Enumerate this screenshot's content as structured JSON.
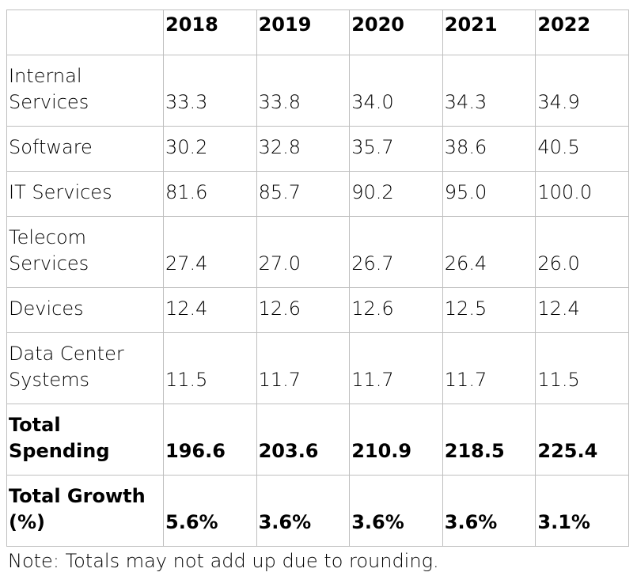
{
  "chart_data": {
    "type": "table",
    "columns": [
      "",
      "2018",
      "2019",
      "2020",
      "2021",
      "2022"
    ],
    "rows": [
      {
        "label": "Internal Services",
        "values": [
          "33.3",
          "33.8",
          "34.0",
          "34.3",
          "34.9"
        ]
      },
      {
        "label": "Software",
        "values": [
          "30.2",
          "32.8",
          "35.7",
          "38.6",
          "40.5"
        ]
      },
      {
        "label": "IT Services",
        "values": [
          "81.6",
          "85.7",
          "90.2",
          "95.0",
          "100.0"
        ]
      },
      {
        "label": "Telecom Services",
        "values": [
          "27.4",
          "27.0",
          "26.7",
          "26.4",
          "26.0"
        ]
      },
      {
        "label": "Devices",
        "values": [
          "12.4",
          "12.6",
          "12.6",
          "12.5",
          "12.4"
        ]
      },
      {
        "label": "Data Center Systems",
        "values": [
          "11.5",
          "11.7",
          "11.7",
          "11.7",
          "11.5"
        ]
      },
      {
        "label": "Total Spending",
        "values": [
          "196.6",
          "203.6",
          "210.9",
          "218.5",
          "225.4"
        ],
        "bold": true
      },
      {
        "label": "Total Growth (%)",
        "values": [
          "5.6%",
          "3.6%",
          "3.6%",
          "3.6%",
          "3.1%"
        ],
        "bold": true
      }
    ]
  },
  "note": "Note: Totals may not add up due to rounding."
}
